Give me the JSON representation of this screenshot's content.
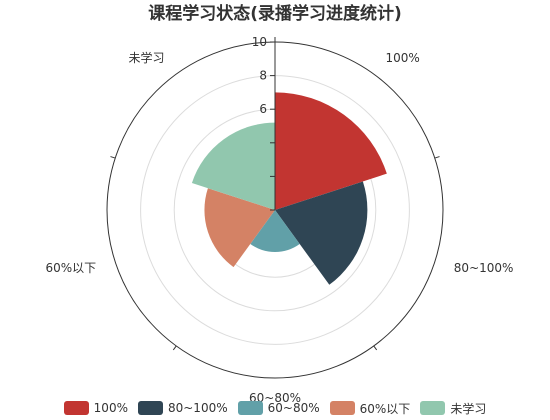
{
  "chart_data": {
    "type": "polar-bar",
    "title": "课程学习状态(录播学习进度统计)",
    "categories": [
      "100%",
      "80~100%",
      "60~80%",
      "60%以下",
      "未学习"
    ],
    "values": [
      7,
      5.5,
      2.5,
      4.2,
      5.2
    ],
    "colors": [
      "#c23531",
      "#2f4554",
      "#61a0a8",
      "#d48265",
      "#91c7ae"
    ],
    "radial_axis": {
      "min": 0,
      "max": 10,
      "ticks": [
        "0",
        "2",
        "4",
        "6",
        "8",
        "10"
      ],
      "visible_tick_labels": [
        "6",
        "8",
        "10"
      ]
    },
    "legend": {
      "position": "bottom",
      "items": [
        "100%",
        "80~100%",
        "60~80%",
        "60%以下",
        "未学习"
      ]
    }
  }
}
